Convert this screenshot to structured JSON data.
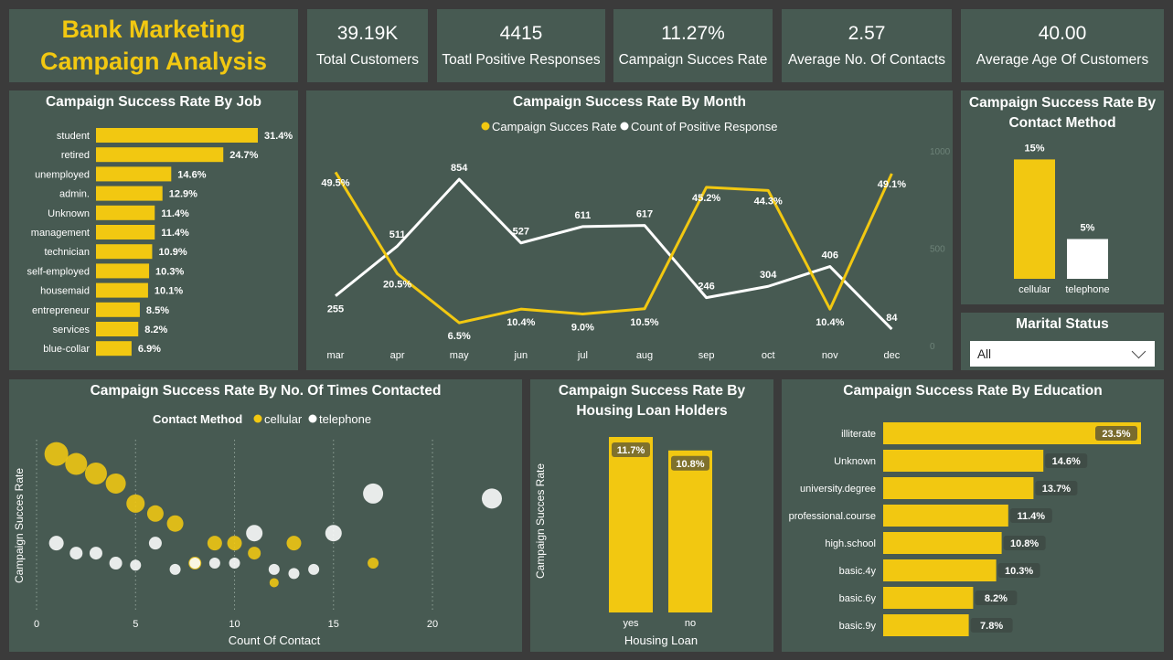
{
  "header": {
    "title_line1": "Bank Marketing",
    "title_line2": "Campaign Analysis"
  },
  "kpis": [
    {
      "value": "39.19K",
      "label": "Total Customers"
    },
    {
      "value": "4415",
      "label": "Toatl Positive Responses"
    },
    {
      "value": "11.27%",
      "label": "Campaign Succes Rate"
    },
    {
      "value": "2.57",
      "label": "Average No. Of Contacts"
    },
    {
      "value": "40.00",
      "label": "Average Age Of Customers"
    }
  ],
  "panels": {
    "job": {
      "title": "Campaign Success Rate By Job"
    },
    "month": {
      "title": "Campaign Success Rate By Month"
    },
    "contact": {
      "title_line1": "Campaign Success Rate By",
      "title_line2": "Contact Method"
    },
    "times": {
      "title": "Campaign Success Rate By No. Of Times Contacted"
    },
    "housing": {
      "title_line1": "Campaign Success Rate By",
      "title_line2": "Housing Loan Holders"
    },
    "education": {
      "title": "Campaign Success Rate By Education"
    }
  },
  "slicer": {
    "title": "Marital Status",
    "value": "All"
  },
  "colors": {
    "accent": "#f2c811",
    "secondary": "#ffffff",
    "panel": "#475a52",
    "background": "#3b3b3b"
  },
  "chart_data": [
    {
      "id": "job",
      "type": "bar",
      "orientation": "horizontal",
      "title": "Campaign Success Rate By Job",
      "categories": [
        "student",
        "retired",
        "unemployed",
        "admin.",
        "Unknown",
        "management",
        "technician",
        "self-employed",
        "housemaid",
        "entrepreneur",
        "services",
        "blue-collar"
      ],
      "values": [
        31.4,
        24.7,
        14.6,
        12.9,
        11.4,
        11.4,
        10.9,
        10.3,
        10.1,
        8.5,
        8.2,
        6.9
      ],
      "labels": [
        "31.4%",
        "24.7%",
        "14.6%",
        "12.9%",
        "11.4%",
        "11.4%",
        "10.9%",
        "10.3%",
        "10.1%",
        "8.5%",
        "8.2%",
        "6.9%"
      ],
      "unit": "%"
    },
    {
      "id": "month",
      "type": "line",
      "title": "Campaign Success Rate By Month",
      "categories": [
        "mar",
        "apr",
        "may",
        "jun",
        "jul",
        "aug",
        "sep",
        "oct",
        "nov",
        "dec"
      ],
      "legend_position": "top-center",
      "series": [
        {
          "name": "Campaign Succes Rate",
          "color": "#f2c811",
          "axis": "left",
          "values": [
            49.5,
            20.5,
            6.5,
            10.4,
            9.0,
            10.5,
            45.2,
            44.3,
            10.4,
            49.1
          ],
          "labels": [
            "49.5%",
            "20.5%",
            "6.5%",
            "10.4%",
            "9.0%",
            "10.5%",
            "45.2%",
            "44.3%",
            "10.4%",
            "49.1%"
          ]
        },
        {
          "name": "Count of Positive Response",
          "color": "#ffffff",
          "axis": "right",
          "values": [
            255,
            511,
            854,
            527,
            611,
            617,
            246,
            304,
            406,
            84
          ],
          "labels": [
            "255",
            "511",
            "854",
            "527",
            "611",
            "617",
            "246",
            "304",
            "406",
            "84"
          ]
        }
      ],
      "y_left_range": [
        0,
        53
      ],
      "y_right_range": [
        0,
        1000
      ],
      "y_right_ticks": [
        "1000",
        "500",
        "0"
      ]
    },
    {
      "id": "contact",
      "type": "bar",
      "title": "Campaign Success Rate By Contact Method",
      "categories": [
        "cellular",
        "telephone"
      ],
      "values": [
        15,
        5
      ],
      "labels": [
        "15%",
        "5%"
      ],
      "colors": [
        "#f2c811",
        "#ffffff"
      ],
      "ylim": [
        0,
        17
      ]
    },
    {
      "id": "times",
      "type": "scatter",
      "title": "Campaign Success Rate By No. Of Times Contacted",
      "xlabel": "Count Of Contact",
      "ylabel": "Campaign Succes Rate",
      "xlim": [
        0,
        23
      ],
      "x_ticks": [
        0,
        5,
        10,
        15,
        20
      ],
      "ylim": [
        -3,
        40
      ],
      "legend_title": "Contact Method",
      "grid": "vertical-dotted",
      "series": [
        {
          "name": "cellular",
          "color": "#f2c811",
          "points": [
            [
              1,
              35.7,
              13
            ],
            [
              2,
              33.3,
              12
            ],
            [
              3,
              31.0,
              12
            ],
            [
              4,
              28.6,
              11
            ],
            [
              5,
              23.8,
              10
            ],
            [
              6,
              21.4,
              9
            ],
            [
              7,
              19.0,
              9
            ],
            [
              8,
              9.5,
              7
            ],
            [
              9,
              14.3,
              8
            ],
            [
              10,
              14.3,
              8
            ],
            [
              11,
              11.9,
              7
            ],
            [
              12,
              4.8,
              5
            ],
            [
              13,
              14.3,
              8
            ],
            [
              17,
              9.5,
              6
            ]
          ]
        },
        {
          "name": "telephone",
          "color": "#ffffff",
          "points": [
            [
              1,
              14.3,
              8
            ],
            [
              2,
              11.9,
              7
            ],
            [
              3,
              11.9,
              7
            ],
            [
              4,
              9.5,
              7
            ],
            [
              5,
              9.0,
              6
            ],
            [
              6,
              14.3,
              7
            ],
            [
              7,
              8.0,
              6
            ],
            [
              8,
              9.5,
              6
            ],
            [
              9,
              9.5,
              6
            ],
            [
              10,
              9.5,
              6
            ],
            [
              11,
              16.7,
              9
            ],
            [
              12,
              8.0,
              6
            ],
            [
              13,
              7.0,
              6
            ],
            [
              14,
              8.0,
              6
            ],
            [
              15,
              16.7,
              9
            ],
            [
              17,
              26.2,
              11
            ],
            [
              23,
              25.0,
              11
            ]
          ]
        }
      ]
    },
    {
      "id": "housing",
      "type": "bar",
      "title": "Campaign Success Rate By Housing Loan Holders",
      "xlabel": "Housing Loan",
      "ylabel": "Campaign Succes Rate",
      "categories": [
        "yes",
        "no"
      ],
      "values": [
        11.7,
        10.8
      ],
      "labels": [
        "11.7%",
        "10.8%"
      ],
      "ylim": [
        0,
        11.7
      ]
    },
    {
      "id": "education",
      "type": "bar",
      "orientation": "horizontal",
      "title": "Campaign Success Rate By Education",
      "categories": [
        "illiterate",
        "Unknown",
        "university.degree",
        "professional.course",
        "high.school",
        "basic.4y",
        "basic.6y",
        "basic.9y"
      ],
      "values": [
        23.5,
        14.6,
        13.7,
        11.4,
        10.8,
        10.3,
        8.2,
        7.8
      ],
      "labels": [
        "23.5%",
        "14.6%",
        "13.7%",
        "11.4%",
        "10.8%",
        "10.3%",
        "8.2%",
        "7.8%"
      ],
      "unit": "%"
    }
  ]
}
